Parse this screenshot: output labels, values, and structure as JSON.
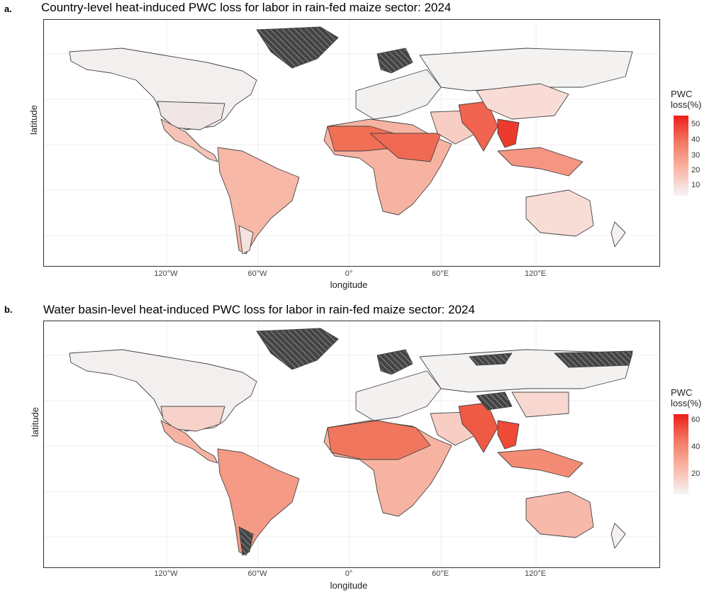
{
  "panels": [
    {
      "letter": "a.",
      "title": "Country-level heat-induced PWC loss for labor in rain-fed maize sector: 2024",
      "xlabel": "longitude",
      "ylabel": "latitude",
      "xticks": [
        "120°W",
        "60°W",
        "0°",
        "60°E",
        "120°E"
      ],
      "legend": {
        "title_line1": "PWC",
        "title_line2": "loss(%)",
        "ticks": [
          "50",
          "40",
          "30",
          "20",
          "10"
        ],
        "max": 55
      }
    },
    {
      "letter": "b.",
      "title": "Water basin-level heat-induced PWC loss for labor in rain-fed maize sector: 2024",
      "xlabel": "longitude",
      "ylabel": "latitude",
      "xticks": [
        "120°W",
        "60°W",
        "0°",
        "60°E",
        "120°E"
      ],
      "legend": {
        "title_line1": "PWC",
        "title_line2": "loss(%)",
        "ticks": [
          "60",
          "40",
          "20"
        ],
        "max": 64
      }
    }
  ],
  "colors": {
    "low": "#f5f5f5",
    "mid": "#f7a190",
    "high": "#ef1d1b",
    "no_data_hatch": "#444444",
    "border": "#333333"
  }
}
